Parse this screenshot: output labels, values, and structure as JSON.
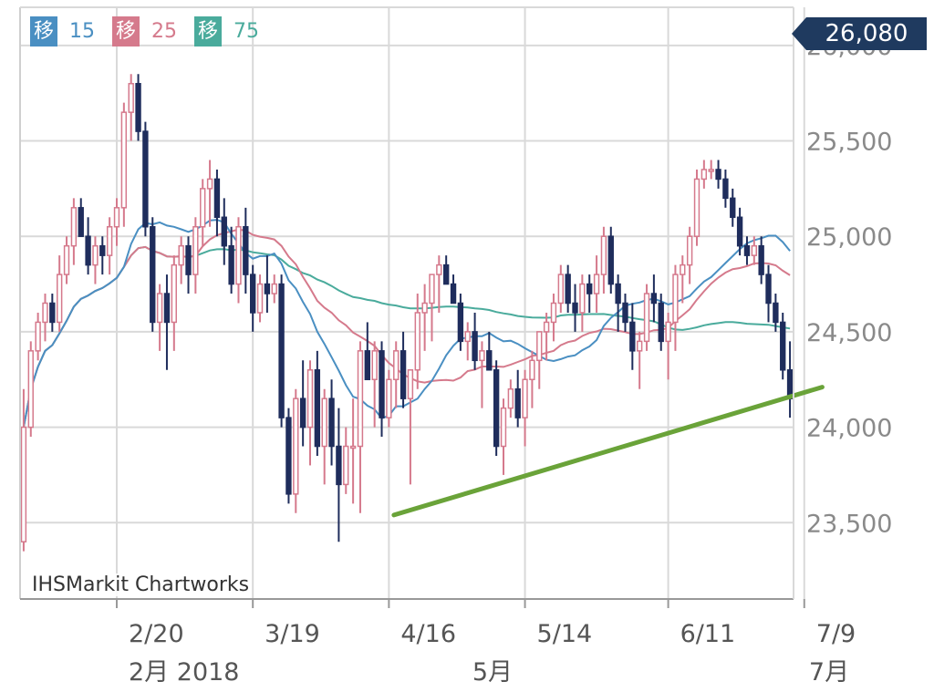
{
  "chart_data": {
    "type": "candlestick",
    "source": "IHSMarkit Chartworks",
    "current_price_label": "26,080",
    "ylim": [
      23100,
      26200
    ],
    "y_ticks": [
      23500,
      24000,
      24500,
      25000,
      25500,
      26000
    ],
    "y_tick_labels": [
      "23,500",
      "24,000",
      "24,500",
      "25,000",
      "25,500",
      "26,000"
    ],
    "x_ticks": [
      {
        "index": 13,
        "label": "2/20"
      },
      {
        "index": 32,
        "label": "3/19"
      },
      {
        "index": 51,
        "label": "4/16"
      },
      {
        "index": 70,
        "label": "5/14"
      },
      {
        "index": 90,
        "label": "6/11"
      },
      {
        "index": 109,
        "label": "7/9"
      }
    ],
    "period_labels": [
      {
        "index": 13,
        "label": "2月 2018"
      },
      {
        "index": 61,
        "label": "5月"
      },
      {
        "index": 108,
        "label": "7月"
      }
    ],
    "legend": [
      {
        "tag": "移",
        "period": "15",
        "color": "#4a8fc2"
      },
      {
        "tag": "移",
        "period": "25",
        "color": "#d57a8c"
      },
      {
        "tag": "移",
        "period": "75",
        "color": "#4aab9c"
      }
    ],
    "colors": {
      "up": "#d5798c",
      "down": "#1f2d5c",
      "ma15": "#4a8fc2",
      "ma25": "#d57a8c",
      "ma75": "#4aab9c",
      "trendline": "#6aa339",
      "price_tag": "#1f3a5f"
    },
    "candles": [
      [
        23400,
        23350,
        24200,
        24000
      ],
      [
        24000,
        23950,
        24450,
        24400
      ],
      [
        24400,
        24350,
        24600,
        24550
      ],
      [
        24550,
        24450,
        24700,
        24650
      ],
      [
        24650,
        24500,
        24700,
        24550
      ],
      [
        24550,
        24500,
        24900,
        24800
      ],
      [
        24800,
        24750,
        25000,
        24950
      ],
      [
        24950,
        24850,
        25200,
        25150
      ],
      [
        25150,
        25000,
        25200,
        25000
      ],
      [
        25000,
        24800,
        25100,
        24850
      ],
      [
        24850,
        24750,
        25000,
        24950
      ],
      [
        24950,
        24800,
        25000,
        24900
      ],
      [
        24900,
        24800,
        25100,
        25050
      ],
      [
        25050,
        24950,
        25200,
        25150
      ],
      [
        25150,
        25050,
        25700,
        25650
      ],
      [
        25650,
        25500,
        25850,
        25800
      ],
      [
        25800,
        25500,
        25850,
        25550
      ],
      [
        25550,
        25000,
        25600,
        25050
      ],
      [
        25050,
        24500,
        25100,
        24550
      ],
      [
        24550,
        24400,
        24750,
        24700
      ],
      [
        24700,
        24300,
        24800,
        24550
      ],
      [
        24550,
        24400,
        24900,
        24850
      ],
      [
        24850,
        24750,
        25000,
        24950
      ],
      [
        24950,
        24700,
        25000,
        24800
      ],
      [
        24800,
        24700,
        25100,
        25050
      ],
      [
        25050,
        24950,
        25300,
        25250
      ],
      [
        25250,
        25050,
        25400,
        25300
      ],
      [
        25300,
        25000,
        25350,
        25100
      ],
      [
        25100,
        24850,
        25200,
        24950
      ],
      [
        24950,
        24700,
        25050,
        24750
      ],
      [
        24750,
        24650,
        25100,
        25050
      ],
      [
        25050,
        24700,
        25150,
        24800
      ],
      [
        24800,
        24500,
        24850,
        24600
      ],
      [
        24600,
        24550,
        24800,
        24750
      ],
      [
        24750,
        24600,
        24900,
        24700
      ],
      [
        24700,
        24650,
        24800,
        24750
      ],
      [
        24750,
        24000,
        24800,
        24050
      ],
      [
        24050,
        23600,
        24100,
        23650
      ],
      [
        23650,
        23550,
        24200,
        24150
      ],
      [
        24150,
        23900,
        24350,
        24000
      ],
      [
        24000,
        23800,
        24350,
        24300
      ],
      [
        24300,
        23850,
        24400,
        23900
      ],
      [
        23900,
        23700,
        24200,
        24150
      ],
      [
        24150,
        23800,
        24250,
        23900
      ],
      [
        23900,
        23400,
        24100,
        23700
      ],
      [
        23700,
        23650,
        24000,
        23900
      ],
      [
        23900,
        23600,
        24150,
        23900
      ],
      [
        23900,
        23550,
        24450,
        24400
      ],
      [
        24400,
        24300,
        24550,
        24250
      ],
      [
        24250,
        24000,
        24450,
        24400
      ],
      [
        24400,
        23950,
        24450,
        24050
      ],
      [
        24050,
        24000,
        24300,
        24250
      ],
      [
        24250,
        24100,
        24450,
        24400
      ],
      [
        24400,
        24100,
        24500,
        24150
      ],
      [
        24150,
        23700,
        24250,
        24300
      ],
      [
        24300,
        24200,
        24700,
        24600
      ],
      [
        24600,
        24400,
        24750,
        24650
      ],
      [
        24650,
        24450,
        24800,
        24800
      ],
      [
        24800,
        24600,
        24900,
        24850
      ],
      [
        24850,
        24750,
        24900,
        24750
      ],
      [
        24750,
        24650,
        24800,
        24650
      ],
      [
        24650,
        24400,
        24700,
        24450
      ],
      [
        24450,
        24350,
        24550,
        24500
      ],
      [
        24500,
        24300,
        24600,
        24350
      ],
      [
        24350,
        24100,
        24450,
        24400
      ],
      [
        24400,
        24300,
        24500,
        24300
      ],
      [
        24300,
        23850,
        24350,
        23900
      ],
      [
        23900,
        23750,
        24150,
        24100
      ],
      [
        24100,
        24050,
        24250,
        24200
      ],
      [
        24200,
        24000,
        24300,
        24050
      ],
      [
        24050,
        23900,
        24300,
        24250
      ],
      [
        24250,
        24100,
        24400,
        24350
      ],
      [
        24350,
        24200,
        24500,
        24500
      ],
      [
        24500,
        24350,
        24600,
        24550
      ],
      [
        24550,
        24450,
        24700,
        24650
      ],
      [
        24650,
        24600,
        24850,
        24800
      ],
      [
        24800,
        24600,
        24850,
        24650
      ],
      [
        24650,
        24500,
        24750,
        24600
      ],
      [
        24600,
        24500,
        24800,
        24750
      ],
      [
        24750,
        24600,
        24800,
        24700
      ],
      [
        24700,
        24600,
        24900,
        24800
      ],
      [
        24800,
        24700,
        25050,
        25000
      ],
      [
        25000,
        24700,
        25050,
        24750
      ],
      [
        24750,
        24500,
        24800,
        24650
      ],
      [
        24650,
        24500,
        24700,
        24550
      ],
      [
        24550,
        24300,
        24650,
        24400
      ],
      [
        24400,
        24200,
        24500,
        24450
      ],
      [
        24450,
        24400,
        24750,
        24700
      ],
      [
        24700,
        24550,
        24800,
        24650
      ],
      [
        24650,
        24400,
        24700,
        24450
      ],
      [
        24450,
        24250,
        24600,
        24550
      ],
      [
        24550,
        24400,
        24850,
        24800
      ],
      [
        24800,
        24650,
        24900,
        24850
      ],
      [
        24850,
        24750,
        25050,
        25000
      ],
      [
        25000,
        24950,
        25350,
        25300
      ],
      [
        25300,
        25250,
        25400,
        25350
      ],
      [
        25350,
        25300,
        25400,
        25350
      ],
      [
        25350,
        25250,
        25400,
        25300
      ],
      [
        25300,
        25150,
        25350,
        25200
      ],
      [
        25200,
        25050,
        25250,
        25100
      ],
      [
        25100,
        24900,
        25150,
        24950
      ],
      [
        24950,
        24850,
        25000,
        24900
      ],
      [
        24900,
        24850,
        25000,
        24950
      ],
      [
        24950,
        24750,
        25000,
        24800
      ],
      [
        24800,
        24550,
        24850,
        24650
      ],
      [
        24650,
        24500,
        24700,
        24550
      ],
      [
        24550,
        24250,
        24600,
        24300
      ],
      [
        24300,
        24050,
        24450,
        24150
      ]
    ],
    "trendline": [
      [
        51.7,
        23540
      ],
      [
        111.5,
        24210
      ]
    ]
  }
}
